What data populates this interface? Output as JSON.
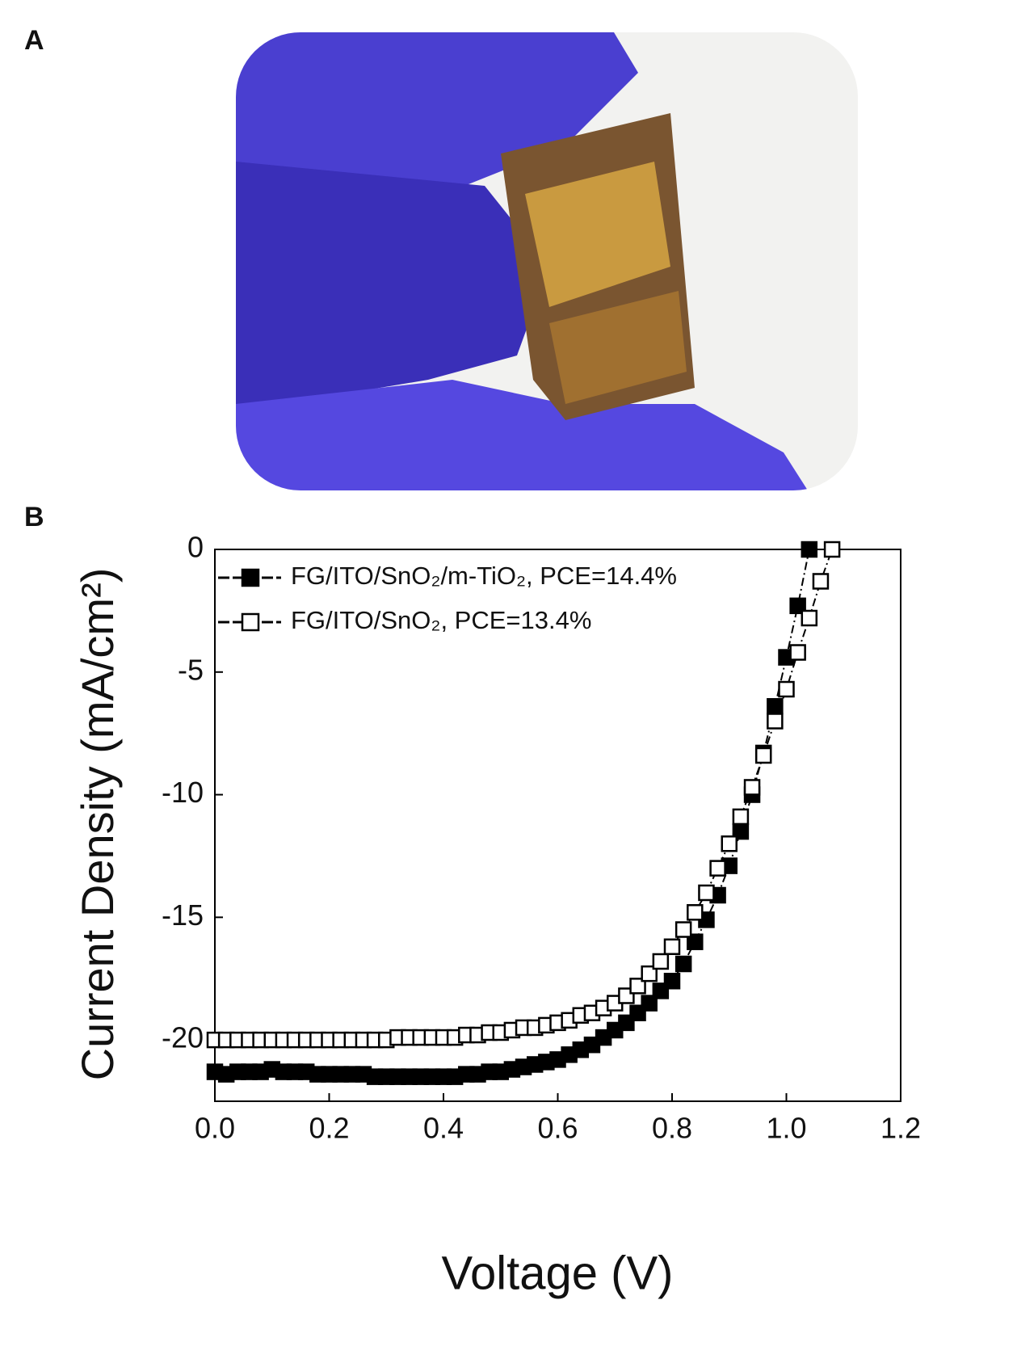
{
  "panels": [
    "A",
    "B"
  ],
  "chart_data": {
    "type": "line",
    "xlabel": "Voltage (V)",
    "ylabel": "Current Density (mA/cm²)",
    "x": [
      0,
      0.02,
      0.04,
      0.06,
      0.08,
      0.1,
      0.12,
      0.14,
      0.16,
      0.18,
      0.2,
      0.22,
      0.24,
      0.26,
      0.28,
      0.3,
      0.32,
      0.34,
      0.36,
      0.38,
      0.4,
      0.42,
      0.44,
      0.46,
      0.48,
      0.5,
      0.52,
      0.54,
      0.56,
      0.58,
      0.6,
      0.62,
      0.64,
      0.66,
      0.68,
      0.7,
      0.72,
      0.74,
      0.76,
      0.78,
      0.8,
      0.82,
      0.84,
      0.86,
      0.88,
      0.9,
      0.92,
      0.94,
      0.96,
      0.98,
      1.0,
      1.02,
      1.04,
      1.06,
      1.08
    ],
    "series": [
      {
        "name": "FG/ITO/SnO₂/m-TiO₂, PCE=14.4%",
        "color": "#000000",
        "marker": "filled",
        "values": [
          -21.3,
          -21.4,
          -21.3,
          -21.3,
          -21.3,
          -21.2,
          -21.3,
          -21.3,
          -21.3,
          -21.4,
          -21.4,
          -21.4,
          -21.4,
          -21.4,
          -21.5,
          -21.5,
          -21.5,
          -21.5,
          -21.5,
          -21.5,
          -21.5,
          -21.5,
          -21.4,
          -21.4,
          -21.3,
          -21.3,
          -21.2,
          -21.1,
          -21.0,
          -20.9,
          -20.8,
          -20.6,
          -20.4,
          -20.2,
          -19.9,
          -19.6,
          -19.3,
          -18.9,
          -18.5,
          -18.0,
          -17.6,
          -16.9,
          -16.0,
          -15.1,
          -14.1,
          -12.9,
          -11.5,
          -10.0,
          -8.3,
          -6.4,
          -4.4,
          -2.3,
          0,
          null,
          null
        ]
      },
      {
        "name": "FG/ITO/SnO₂, PCE=13.4%",
        "color": "#000000",
        "marker": "open",
        "values": [
          -20.0,
          -20.0,
          -20.0,
          -20.0,
          -20.0,
          -20.0,
          -20.0,
          -20.0,
          -20.0,
          -20.0,
          -20.0,
          -20.0,
          -20.0,
          -20.0,
          -20.0,
          -20.0,
          -19.9,
          -19.9,
          -19.9,
          -19.9,
          -19.9,
          -19.9,
          -19.8,
          -19.8,
          -19.7,
          -19.7,
          -19.6,
          -19.5,
          -19.5,
          -19.4,
          -19.3,
          -19.2,
          -19.0,
          -18.9,
          -18.7,
          -18.5,
          -18.2,
          -17.8,
          -17.3,
          -16.8,
          -16.2,
          -15.5,
          -14.8,
          -14.0,
          -13.0,
          -12.0,
          -10.9,
          -9.7,
          -8.4,
          -7.0,
          -5.7,
          -4.2,
          -2.8,
          -1.3,
          0
        ]
      }
    ],
    "xlim": [
      0,
      1.2
    ],
    "xticks": [
      {
        "value": 0,
        "label": "0.0"
      },
      0.2,
      0.4,
      0.6,
      0.8,
      {
        "value": 1,
        "label": "1.0"
      },
      1.2
    ],
    "ylim": [
      -22.5,
      0
    ],
    "yticks": [
      0,
      -5,
      -10,
      -15,
      -20
    ],
    "legend": "upper left",
    "grid": false
  }
}
